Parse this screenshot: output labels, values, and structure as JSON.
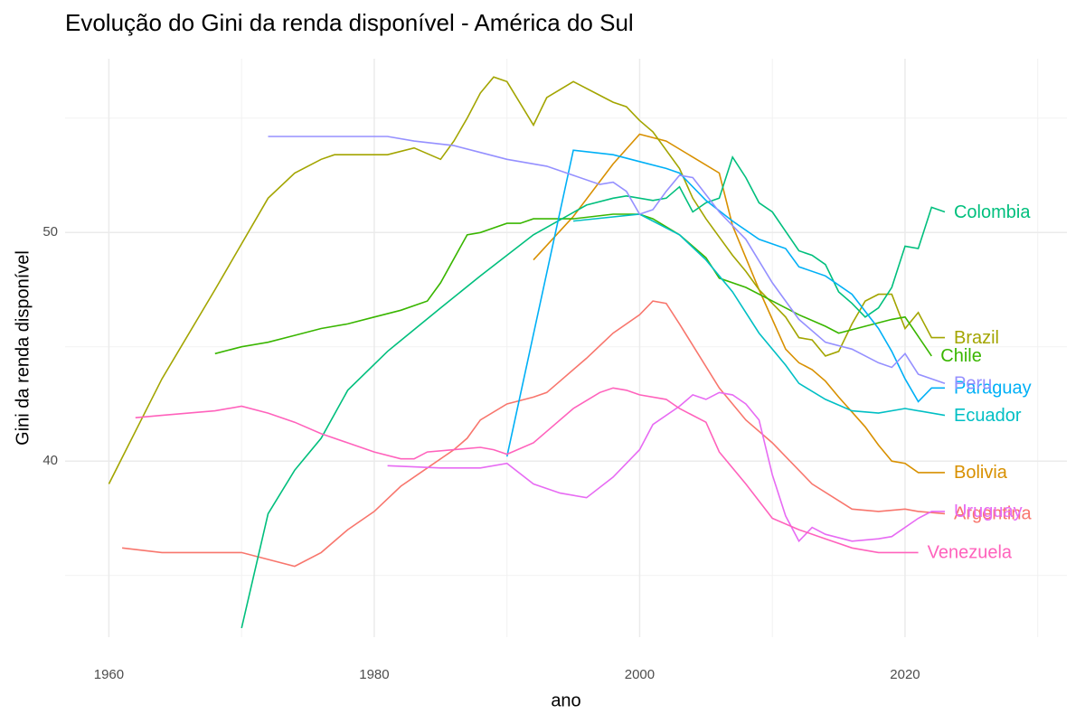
{
  "chart_data": {
    "type": "line",
    "title": "Evolução do Gini da renda disponível - América do Sul",
    "x_label": "ano",
    "y_label": "Gini da renda disponível",
    "xlim": [
      1956.7,
      2032.2
    ],
    "ylim": [
      32.3,
      57.6
    ],
    "xticks": [
      1960,
      1980,
      2000,
      2020
    ],
    "yticks": [
      40,
      50
    ],
    "x_minor_grid": [
      1970,
      1990,
      2010,
      2030
    ],
    "y_minor_grid": [
      35,
      45,
      55
    ],
    "grid": true,
    "series": [
      {
        "name": "Argentina",
        "color": "#F8766D",
        "x": [
          1961,
          1964,
          1970,
          1972,
          1974,
          1976,
          1978,
          1980,
          1982,
          1984,
          1986,
          1987,
          1988,
          1990,
          1992,
          1993,
          1994,
          1996,
          1998,
          2000,
          2001,
          2002,
          2003,
          2006,
          2008,
          2010,
          2013,
          2016,
          2018,
          2020,
          2021,
          2023
        ],
        "values": [
          36.2,
          36.0,
          36.0,
          35.7,
          35.4,
          36.0,
          37.0,
          37.8,
          38.9,
          39.7,
          40.5,
          41.0,
          41.8,
          42.5,
          42.8,
          43.0,
          43.5,
          44.5,
          45.6,
          46.4,
          47.0,
          46.9,
          46.0,
          43.2,
          41.8,
          40.8,
          39.0,
          37.9,
          37.8,
          37.9,
          37.8,
          37.7
        ]
      },
      {
        "name": "Bolivia",
        "color": "#D89000",
        "x": [
          1992,
          1995,
          1998,
          2000,
          2002,
          2004,
          2006,
          2007,
          2009,
          2011,
          2012,
          2013,
          2014,
          2015,
          2017,
          2018,
          2019,
          2020,
          2021,
          2023
        ],
        "values": [
          48.8,
          50.7,
          53.0,
          54.3,
          54.0,
          53.3,
          52.6,
          50.3,
          47.5,
          44.9,
          44.3,
          44.0,
          43.5,
          42.8,
          41.5,
          40.7,
          40.0,
          39.9,
          39.5,
          39.5
        ]
      },
      {
        "name": "Brazil",
        "color": "#A3A500",
        "x": [
          1960,
          1964,
          1968,
          1972,
          1974,
          1976,
          1977,
          1981,
          1983,
          1985,
          1986,
          1987,
          1988,
          1989,
          1990,
          1992,
          1993,
          1995,
          1997,
          1998,
          1999,
          2000,
          2001,
          2003,
          2004,
          2005,
          2006,
          2007,
          2008,
          2009,
          2010,
          2011,
          2012,
          2013,
          2014,
          2015,
          2016,
          2017,
          2018,
          2019,
          2020,
          2021,
          2022,
          2023
        ],
        "values": [
          39.0,
          43.6,
          47.5,
          51.5,
          52.6,
          53.2,
          53.4,
          53.4,
          53.7,
          53.2,
          54.0,
          55.0,
          56.1,
          56.8,
          56.6,
          54.7,
          55.9,
          56.6,
          56.0,
          55.7,
          55.5,
          54.9,
          54.4,
          52.8,
          51.5,
          50.6,
          49.8,
          49.0,
          48.3,
          47.5,
          46.9,
          46.3,
          45.4,
          45.3,
          44.6,
          44.8,
          46.0,
          47.0,
          47.3,
          47.3,
          45.8,
          46.5,
          45.4,
          45.4
        ]
      },
      {
        "name": "Chile",
        "color": "#39B600",
        "x": [
          1968,
          1970,
          1972,
          1974,
          1976,
          1978,
          1980,
          1982,
          1984,
          1985,
          1987,
          1988,
          1990,
          1991,
          1992,
          1995,
          1998,
          2000,
          2001,
          2003,
          2005,
          2006,
          2008,
          2010,
          2012,
          2014,
          2015,
          2017,
          2019,
          2020,
          2022
        ],
        "values": [
          44.7,
          45.0,
          45.2,
          45.5,
          45.8,
          46.0,
          46.3,
          46.6,
          47.0,
          47.8,
          49.9,
          50.0,
          50.4,
          50.4,
          50.6,
          50.6,
          50.8,
          50.8,
          50.6,
          49.9,
          48.9,
          48.0,
          47.6,
          47.0,
          46.4,
          45.9,
          45.6,
          45.9,
          46.2,
          46.3,
          44.6
        ]
      },
      {
        "name": "Colombia",
        "color": "#00BF7D",
        "x": [
          1970,
          1972,
          1974,
          1976,
          1978,
          1981,
          1985,
          1988,
          1992,
          1996,
          1998,
          1999,
          2001,
          2002,
          2003,
          2004,
          2005,
          2006,
          2007,
          2008,
          2009,
          2010,
          2012,
          2013,
          2014,
          2015,
          2016,
          2017,
          2018,
          2019,
          2020,
          2021,
          2022,
          2023
        ],
        "values": [
          32.7,
          37.7,
          39.6,
          41.0,
          43.1,
          44.8,
          46.7,
          48.1,
          49.9,
          51.2,
          51.5,
          51.6,
          51.4,
          51.5,
          52.0,
          50.9,
          51.3,
          51.5,
          53.3,
          52.4,
          51.3,
          50.9,
          49.2,
          49.0,
          48.6,
          47.4,
          46.9,
          46.3,
          46.7,
          47.6,
          49.4,
          49.3,
          51.1,
          50.9
        ]
      },
      {
        "name": "Ecuador",
        "color": "#00BFC4",
        "x": [
          1995,
          2000,
          2003,
          2005,
          2007,
          2009,
          2011,
          2012,
          2014,
          2016,
          2018,
          2020,
          2023
        ],
        "values": [
          50.5,
          50.8,
          49.9,
          48.8,
          47.4,
          45.6,
          44.2,
          43.4,
          42.7,
          42.2,
          42.1,
          42.3,
          42.0
        ]
      },
      {
        "name": "Paraguay",
        "color": "#00B0F6",
        "x": [
          1990,
          1995,
          1998,
          2000,
          2002,
          2003,
          2005,
          2007,
          2009,
          2011,
          2012,
          2014,
          2016,
          2018,
          2019,
          2020,
          2021,
          2022,
          2023
        ],
        "values": [
          40.2,
          53.6,
          53.4,
          53.1,
          52.8,
          52.6,
          51.4,
          50.5,
          49.7,
          49.3,
          48.5,
          48.1,
          47.3,
          45.8,
          44.8,
          43.6,
          42.6,
          43.2,
          43.2
        ]
      },
      {
        "name": "Peru",
        "color": "#9590FF",
        "x": [
          1972,
          1981,
          1983,
          1986,
          1988,
          1990,
          1993,
          1995,
          1997,
          1998,
          1999,
          2000,
          2001,
          2002,
          2003,
          2004,
          2006,
          2008,
          2010,
          2012,
          2014,
          2016,
          2018,
          2019,
          2020,
          2021,
          2023
        ],
        "values": [
          54.2,
          54.2,
          54.0,
          53.8,
          53.5,
          53.2,
          52.9,
          52.5,
          52.1,
          52.2,
          51.8,
          50.8,
          51.0,
          51.8,
          52.5,
          52.4,
          50.9,
          49.7,
          47.8,
          46.2,
          45.2,
          44.9,
          44.3,
          44.1,
          44.7,
          43.8,
          43.4
        ]
      },
      {
        "name": "Uruguay",
        "color": "#E76BF3",
        "x": [
          1981,
          1985,
          1988,
          1990,
          1992,
          1994,
          1996,
          1998,
          2000,
          2001,
          2003,
          2004,
          2005,
          2006,
          2007,
          2008,
          2009,
          2010,
          2011,
          2012,
          2013,
          2014,
          2016,
          2018,
          2019,
          2021,
          2022,
          2023
        ],
        "values": [
          39.8,
          39.7,
          39.7,
          39.9,
          39.0,
          38.6,
          38.4,
          39.3,
          40.5,
          41.6,
          42.4,
          42.9,
          42.7,
          43.0,
          42.9,
          42.5,
          41.8,
          39.4,
          37.6,
          36.5,
          37.1,
          36.8,
          36.5,
          36.6,
          36.7,
          37.5,
          37.8,
          37.8
        ]
      },
      {
        "name": "Venezuela",
        "color": "#FF62BC",
        "x": [
          1962,
          1964,
          1966,
          1968,
          1970,
          1972,
          1974,
          1976,
          1978,
          1980,
          1982,
          1983,
          1984,
          1986,
          1988,
          1989,
          1990,
          1992,
          1993,
          1995,
          1997,
          1998,
          1999,
          2000,
          2002,
          2003,
          2005,
          2006,
          2008,
          2010,
          2012,
          2014,
          2016,
          2018,
          2021
        ],
        "values": [
          41.9,
          42.0,
          42.1,
          42.2,
          42.4,
          42.1,
          41.7,
          41.2,
          40.8,
          40.4,
          40.1,
          40.1,
          40.4,
          40.5,
          40.6,
          40.5,
          40.3,
          40.8,
          41.3,
          42.3,
          43.0,
          43.2,
          43.1,
          42.9,
          42.7,
          42.3,
          41.7,
          40.4,
          39.0,
          37.5,
          37.0,
          36.6,
          36.2,
          36.0,
          36.0
        ]
      }
    ]
  }
}
